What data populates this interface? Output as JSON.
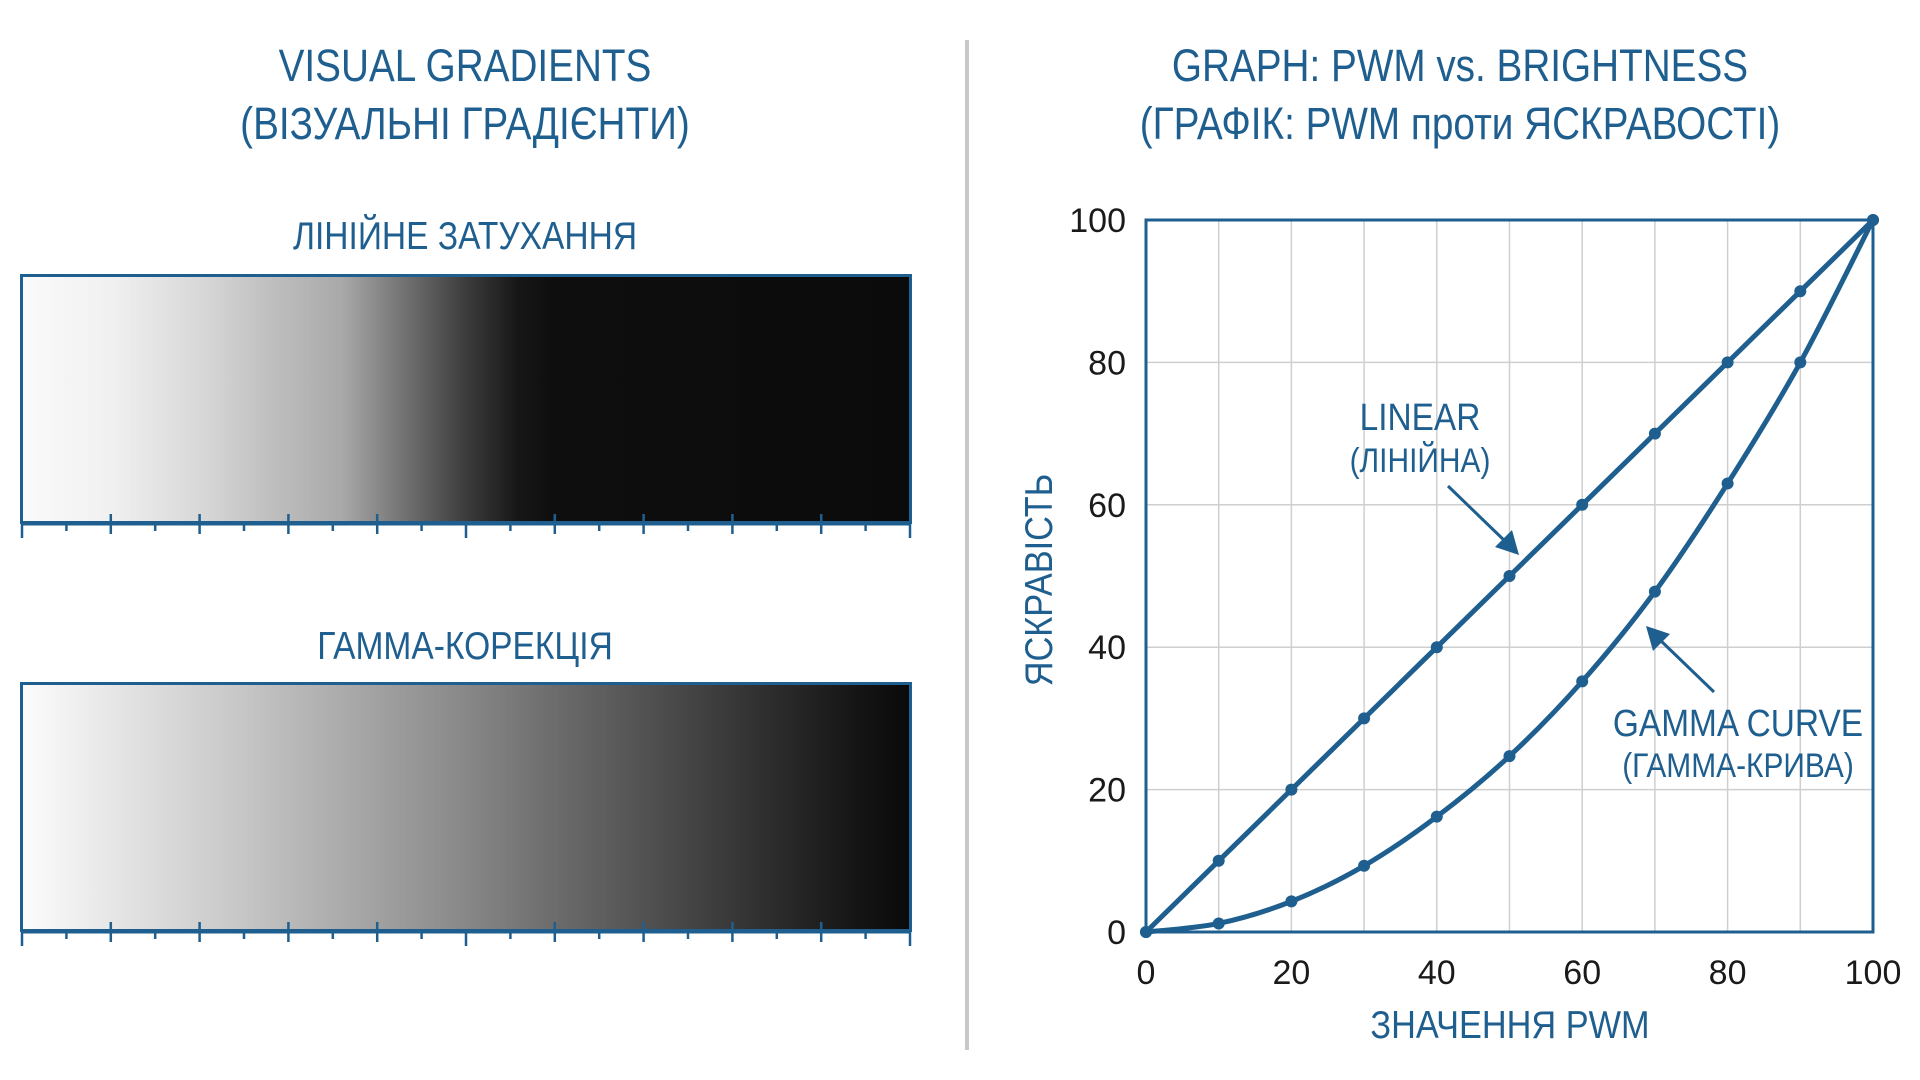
{
  "left_panel": {
    "title_line1": "VISUAL GRADIENTS",
    "title_line2": "(ВІЗУАЛЬНІ ГРАДІЄНТИ)",
    "linear_label": "ЛІНІЙНЕ ЗАТУХАННЯ",
    "gamma_label": "ГАММА-КОРЕКЦІЯ"
  },
  "right_panel": {
    "title_line1": "GRAPH: PWM vs. BRIGHTNESS",
    "title_line2": "(ГРАФІК: PWM проти ЯСКРАВОСТІ)"
  },
  "chart_data": {
    "type": "line",
    "xlabel": "ЗНАЧЕННЯ PWM",
    "ylabel": "ЯСКРАВІСТЬ",
    "xlim": [
      0,
      100
    ],
    "ylim": [
      0,
      100
    ],
    "xticks": [
      0,
      20,
      40,
      60,
      80,
      100
    ],
    "yticks": [
      0,
      20,
      40,
      60,
      80,
      100
    ],
    "grid": true,
    "x": [
      0,
      10,
      20,
      30,
      40,
      50,
      60,
      70,
      80,
      90,
      100
    ],
    "series": [
      {
        "name": "LINEAR",
        "name_sub": "(ЛІНІЙНА)",
        "values": [
          0,
          10,
          20,
          30,
          40,
          50,
          60,
          70,
          80,
          90,
          100
        ]
      },
      {
        "name": "GAMMA CURVE",
        "name_sub": "(ГАММА-КРИВА)",
        "values": [
          0,
          1.2,
          4.3,
          9.3,
          16.2,
          24.7,
          35.2,
          47.8,
          63,
          80,
          100
        ]
      }
    ]
  },
  "colors": {
    "accent": "#1f5f8f",
    "grid": "#cfcfcf",
    "divider": "#c8c8c8"
  }
}
